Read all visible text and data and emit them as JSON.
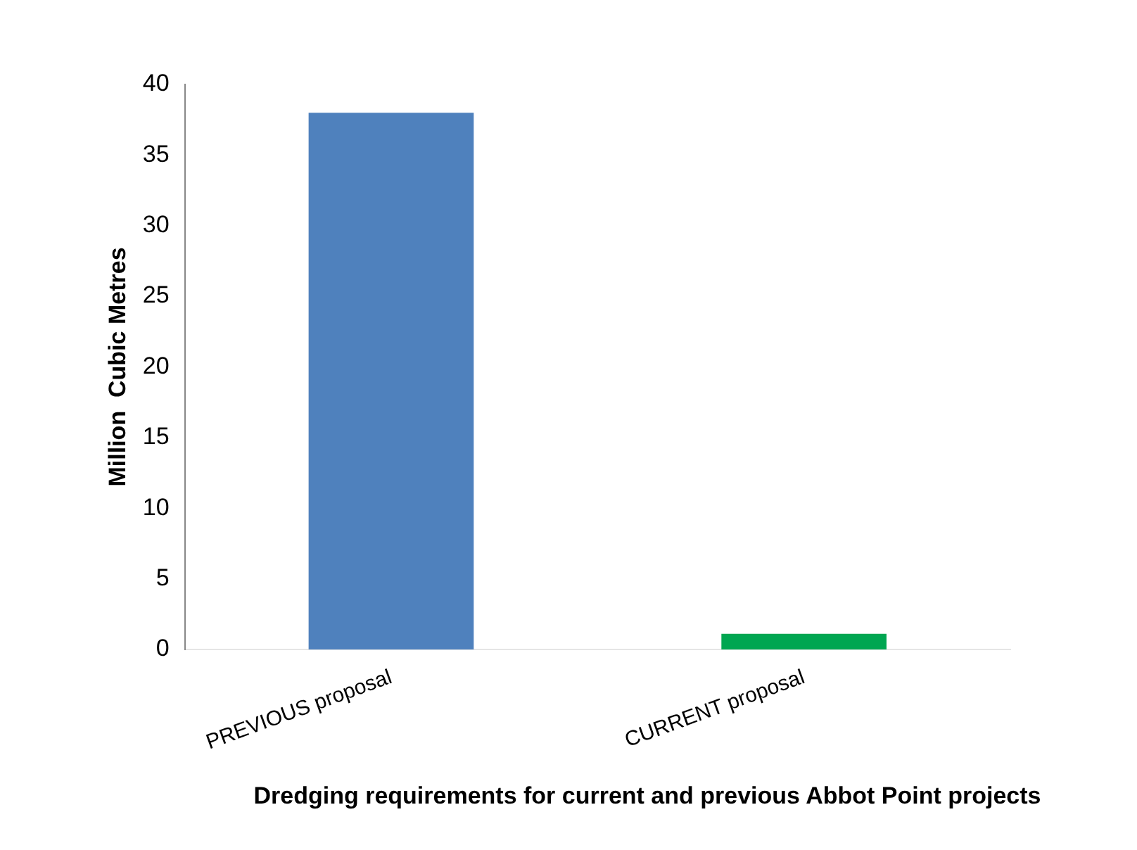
{
  "chart_data": {
    "type": "bar",
    "categories": [
      "PREVIOUS proposal",
      "CURRENT proposal"
    ],
    "values": [
      38,
      1.1
    ],
    "colors": [
      "#4f81bd",
      "#00a651"
    ],
    "ylabel": "Million  Cubic Metres",
    "xlabel": "Dredging requirements for current and previous Abbot Point projects",
    "ylim": [
      0,
      40
    ],
    "yticks": [
      0,
      5,
      10,
      15,
      20,
      25,
      30,
      35,
      40
    ],
    "grid": false,
    "legend": false
  }
}
